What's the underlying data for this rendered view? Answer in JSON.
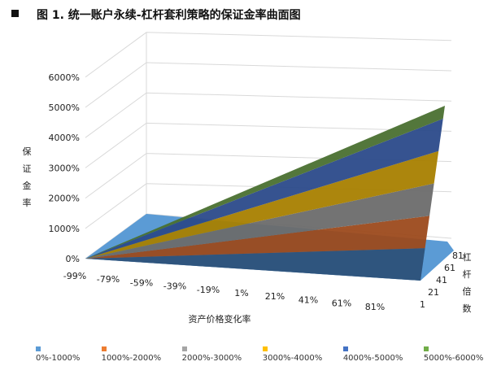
{
  "title": "图 1. 统一账户永续-杠杆套利策略的保证金率曲面图",
  "chart_data": {
    "type": "surface",
    "title": "",
    "xlabel": "资产价格变化率",
    "ylabel": "杠杆倍数",
    "zlabel": "保证金率",
    "x_ticks": [
      "-99%",
      "-79%",
      "-59%",
      "-39%",
      "-19%",
      "1%",
      "21%",
      "41%",
      "61%",
      "81%"
    ],
    "y_ticks": [
      "1",
      "21",
      "41",
      "61",
      "81"
    ],
    "z_ticks": [
      "0%",
      "1000%",
      "2000%",
      "3000%",
      "4000%",
      "5000%",
      "6000%"
    ],
    "zlim": [
      0,
      6000
    ],
    "bands": [
      {
        "name": "0%-1000%",
        "color": "#5b9bd5"
      },
      {
        "name": "1000%-2000%",
        "color": "#ed7d31"
      },
      {
        "name": "2000%-3000%",
        "color": "#a5a5a5"
      },
      {
        "name": "3000%-4000%",
        "color": "#ffc000"
      },
      {
        "name": "4000%-5000%",
        "color": "#4472c4"
      },
      {
        "name": "5000%-6000%",
        "color": "#70ad47"
      }
    ],
    "max_value": 5400
  }
}
